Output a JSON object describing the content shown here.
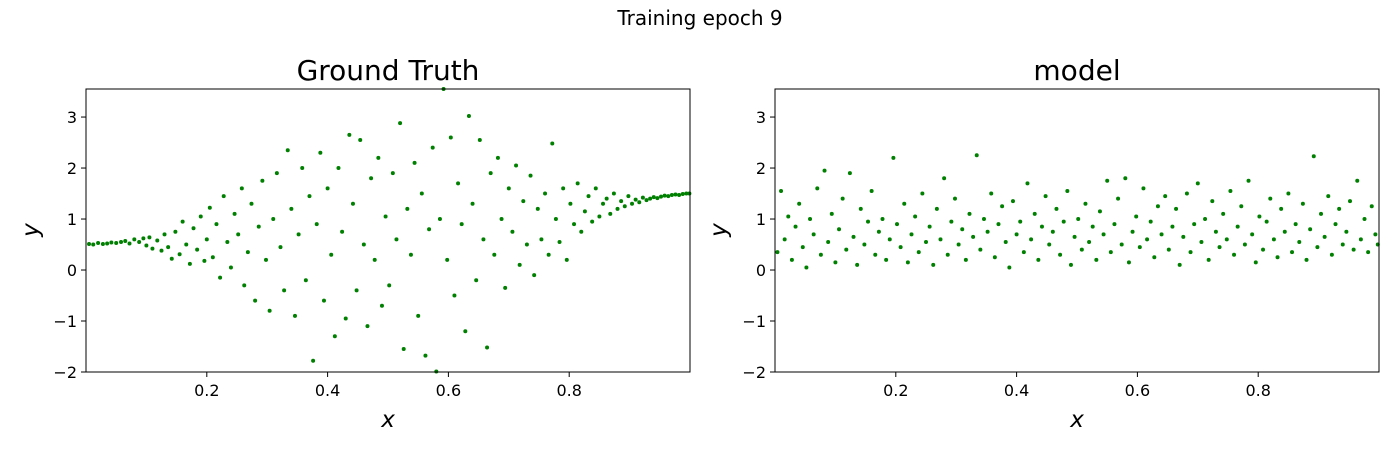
{
  "figure": {
    "suptitle": "Training epoch 9",
    "point_color": "#008000"
  },
  "chart_data": [
    {
      "type": "scatter",
      "title": "Ground Truth",
      "xlabel": "x",
      "ylabel": "y",
      "xlim": [
        0.0,
        1.0
      ],
      "ylim": [
        -2.0,
        3.55
      ],
      "xticks": [
        0.2,
        0.4,
        0.6,
        0.8
      ],
      "xtick_labels": [
        "0.2",
        "0.4",
        "0.6",
        "0.8"
      ],
      "yticks": [
        -2,
        -1,
        0,
        1,
        2,
        3
      ],
      "ytick_labels": [
        "−2",
        "−1",
        "0",
        "1",
        "2",
        "3"
      ],
      "grid": false,
      "description_of_distribution": "y centred on 0.5 + x with noise spread rising from ~0 at the edges to about ±2.5 around x=0.5",
      "points": [
        [
          0.005,
          0.51
        ],
        [
          0.012,
          0.5
        ],
        [
          0.02,
          0.53
        ],
        [
          0.028,
          0.51
        ],
        [
          0.035,
          0.52
        ],
        [
          0.042,
          0.54
        ],
        [
          0.05,
          0.53
        ],
        [
          0.058,
          0.55
        ],
        [
          0.065,
          0.57
        ],
        [
          0.072,
          0.52
        ],
        [
          0.08,
          0.6
        ],
        [
          0.088,
          0.55
        ],
        [
          0.095,
          0.62
        ],
        [
          0.1,
          0.48
        ],
        [
          0.105,
          0.64
        ],
        [
          0.11,
          0.42
        ],
        [
          0.118,
          0.58
        ],
        [
          0.125,
          0.38
        ],
        [
          0.13,
          0.7
        ],
        [
          0.136,
          0.45
        ],
        [
          0.142,
          0.22
        ],
        [
          0.148,
          0.75
        ],
        [
          0.155,
          0.31
        ],
        [
          0.16,
          0.95
        ],
        [
          0.166,
          0.5
        ],
        [
          0.172,
          0.12
        ],
        [
          0.178,
          0.82
        ],
        [
          0.184,
          0.4
        ],
        [
          0.19,
          1.05
        ],
        [
          0.196,
          0.18
        ],
        [
          0.2,
          0.6
        ],
        [
          0.205,
          1.22
        ],
        [
          0.21,
          0.25
        ],
        [
          0.216,
          0.9
        ],
        [
          0.222,
          -0.15
        ],
        [
          0.228,
          1.45
        ],
        [
          0.234,
          0.55
        ],
        [
          0.24,
          0.05
        ],
        [
          0.246,
          1.1
        ],
        [
          0.252,
          0.7
        ],
        [
          0.258,
          1.6
        ],
        [
          0.262,
          -0.3
        ],
        [
          0.268,
          0.35
        ],
        [
          0.274,
          1.3
        ],
        [
          0.28,
          -0.6
        ],
        [
          0.286,
          0.85
        ],
        [
          0.292,
          1.75
        ],
        [
          0.298,
          0.2
        ],
        [
          0.304,
          -0.8
        ],
        [
          0.31,
          1.0
        ],
        [
          0.316,
          1.9
        ],
        [
          0.322,
          0.45
        ],
        [
          0.328,
          -0.4
        ],
        [
          0.334,
          2.35
        ],
        [
          0.34,
          1.2
        ],
        [
          0.346,
          -0.9
        ],
        [
          0.352,
          0.7
        ],
        [
          0.358,
          2.0
        ],
        [
          0.364,
          -0.2
        ],
        [
          0.37,
          1.45
        ],
        [
          0.376,
          -1.78
        ],
        [
          0.382,
          0.9
        ],
        [
          0.388,
          2.3
        ],
        [
          0.394,
          -0.6
        ],
        [
          0.4,
          1.6
        ],
        [
          0.406,
          0.3
        ],
        [
          0.412,
          -1.3
        ],
        [
          0.418,
          2.0
        ],
        [
          0.424,
          0.75
        ],
        [
          0.43,
          -0.95
        ],
        [
          0.436,
          2.65
        ],
        [
          0.442,
          1.3
        ],
        [
          0.448,
          -0.4
        ],
        [
          0.454,
          2.55
        ],
        [
          0.46,
          0.5
        ],
        [
          0.466,
          -1.1
        ],
        [
          0.472,
          1.8
        ],
        [
          0.478,
          0.2
        ],
        [
          0.484,
          2.2
        ],
        [
          0.49,
          -0.7
        ],
        [
          0.496,
          1.05
        ],
        [
          0.502,
          -0.3
        ],
        [
          0.508,
          1.9
        ],
        [
          0.514,
          0.6
        ],
        [
          0.52,
          2.88
        ],
        [
          0.526,
          -1.55
        ],
        [
          0.532,
          1.2
        ],
        [
          0.538,
          0.3
        ],
        [
          0.544,
          2.1
        ],
        [
          0.55,
          -0.9
        ],
        [
          0.556,
          1.5
        ],
        [
          0.562,
          -1.68
        ],
        [
          0.568,
          0.8
        ],
        [
          0.574,
          2.4
        ],
        [
          0.58,
          -1.99
        ],
        [
          0.586,
          1.0
        ],
        [
          0.592,
          3.55
        ],
        [
          0.598,
          0.2
        ],
        [
          0.604,
          2.6
        ],
        [
          0.61,
          -0.5
        ],
        [
          0.616,
          1.7
        ],
        [
          0.622,
          0.9
        ],
        [
          0.628,
          -1.2
        ],
        [
          0.634,
          3.02
        ],
        [
          0.64,
          1.3
        ],
        [
          0.646,
          -0.2
        ],
        [
          0.652,
          2.55
        ],
        [
          0.658,
          0.6
        ],
        [
          0.664,
          -1.52
        ],
        [
          0.67,
          1.9
        ],
        [
          0.676,
          0.3
        ],
        [
          0.682,
          2.2
        ],
        [
          0.688,
          1.0
        ],
        [
          0.694,
          -0.35
        ],
        [
          0.7,
          1.6
        ],
        [
          0.706,
          0.75
        ],
        [
          0.712,
          2.05
        ],
        [
          0.718,
          0.1
        ],
        [
          0.724,
          1.35
        ],
        [
          0.73,
          0.5
        ],
        [
          0.736,
          1.85
        ],
        [
          0.742,
          -0.1
        ],
        [
          0.748,
          1.2
        ],
        [
          0.754,
          0.6
        ],
        [
          0.76,
          1.5
        ],
        [
          0.766,
          0.3
        ],
        [
          0.772,
          2.48
        ],
        [
          0.778,
          1.0
        ],
        [
          0.784,
          0.55
        ],
        [
          0.79,
          1.6
        ],
        [
          0.796,
          0.2
        ],
        [
          0.802,
          1.3
        ],
        [
          0.808,
          0.9
        ],
        [
          0.814,
          1.7
        ],
        [
          0.82,
          0.75
        ],
        [
          0.826,
          1.15
        ],
        [
          0.832,
          1.45
        ],
        [
          0.838,
          0.95
        ],
        [
          0.844,
          1.6
        ],
        [
          0.85,
          1.05
        ],
        [
          0.856,
          1.3
        ],
        [
          0.862,
          1.4
        ],
        [
          0.868,
          1.1
        ],
        [
          0.874,
          1.5
        ],
        [
          0.88,
          1.2
        ],
        [
          0.886,
          1.35
        ],
        [
          0.892,
          1.25
        ],
        [
          0.898,
          1.45
        ],
        [
          0.904,
          1.3
        ],
        [
          0.91,
          1.38
        ],
        [
          0.916,
          1.33
        ],
        [
          0.922,
          1.42
        ],
        [
          0.928,
          1.37
        ],
        [
          0.934,
          1.4
        ],
        [
          0.94,
          1.43
        ],
        [
          0.946,
          1.41
        ],
        [
          0.952,
          1.44
        ],
        [
          0.958,
          1.46
        ],
        [
          0.964,
          1.45
        ],
        [
          0.97,
          1.47
        ],
        [
          0.976,
          1.48
        ],
        [
          0.982,
          1.47
        ],
        [
          0.988,
          1.49
        ],
        [
          0.994,
          1.5
        ],
        [
          0.999,
          1.5
        ]
      ]
    },
    {
      "type": "scatter",
      "title": "model",
      "xlabel": "x",
      "ylabel": "y",
      "xlim": [
        0.0,
        1.0
      ],
      "ylim": [
        -2.0,
        3.55
      ],
      "xticks": [
        0.2,
        0.4,
        0.6,
        0.8
      ],
      "xtick_labels": [
        "0.2",
        "0.4",
        "0.6",
        "0.8"
      ],
      "yticks": [
        -2,
        -1,
        0,
        1,
        2,
        3
      ],
      "ytick_labels": [
        "−2",
        "−1",
        "0",
        "1",
        "2",
        "3"
      ],
      "grid": false,
      "description_of_distribution": "y roughly uniform band between 0 and 1.5 across all x, a few outliers near 2.2",
      "points": [
        [
          0.004,
          0.35
        ],
        [
          0.01,
          1.55
        ],
        [
          0.016,
          0.6
        ],
        [
          0.022,
          1.05
        ],
        [
          0.028,
          0.2
        ],
        [
          0.034,
          0.85
        ],
        [
          0.04,
          1.3
        ],
        [
          0.046,
          0.45
        ],
        [
          0.052,
          0.05
        ],
        [
          0.058,
          1.0
        ],
        [
          0.064,
          0.7
        ],
        [
          0.07,
          1.6
        ],
        [
          0.076,
          0.3
        ],
        [
          0.082,
          1.95
        ],
        [
          0.088,
          0.55
        ],
        [
          0.094,
          1.1
        ],
        [
          0.1,
          0.15
        ],
        [
          0.106,
          0.8
        ],
        [
          0.112,
          1.4
        ],
        [
          0.118,
          0.4
        ],
        [
          0.124,
          1.9
        ],
        [
          0.13,
          0.65
        ],
        [
          0.136,
          0.1
        ],
        [
          0.142,
          1.2
        ],
        [
          0.148,
          0.5
        ],
        [
          0.154,
          0.95
        ],
        [
          0.16,
          1.55
        ],
        [
          0.166,
          0.3
        ],
        [
          0.172,
          0.75
        ],
        [
          0.178,
          1.0
        ],
        [
          0.184,
          0.2
        ],
        [
          0.19,
          0.6
        ],
        [
          0.196,
          2.2
        ],
        [
          0.202,
          0.9
        ],
        [
          0.208,
          0.45
        ],
        [
          0.214,
          1.3
        ],
        [
          0.22,
          0.15
        ],
        [
          0.226,
          0.7
        ],
        [
          0.232,
          1.05
        ],
        [
          0.238,
          0.35
        ],
        [
          0.244,
          1.5
        ],
        [
          0.25,
          0.55
        ],
        [
          0.256,
          0.85
        ],
        [
          0.262,
          0.1
        ],
        [
          0.268,
          1.2
        ],
        [
          0.274,
          0.6
        ],
        [
          0.28,
          1.8
        ],
        [
          0.286,
          0.3
        ],
        [
          0.292,
          0.95
        ],
        [
          0.298,
          1.4
        ],
        [
          0.304,
          0.5
        ],
        [
          0.31,
          0.8
        ],
        [
          0.316,
          0.2
        ],
        [
          0.322,
          1.1
        ],
        [
          0.328,
          0.65
        ],
        [
          0.334,
          2.25
        ],
        [
          0.34,
          0.4
        ],
        [
          0.346,
          1.0
        ],
        [
          0.352,
          0.75
        ],
        [
          0.358,
          1.5
        ],
        [
          0.364,
          0.25
        ],
        [
          0.37,
          0.9
        ],
        [
          0.376,
          1.25
        ],
        [
          0.382,
          0.55
        ],
        [
          0.388,
          0.05
        ],
        [
          0.394,
          1.35
        ],
        [
          0.4,
          0.7
        ],
        [
          0.406,
          0.95
        ],
        [
          0.412,
          0.35
        ],
        [
          0.418,
          1.7
        ],
        [
          0.424,
          0.6
        ],
        [
          0.43,
          1.1
        ],
        [
          0.436,
          0.2
        ],
        [
          0.442,
          0.85
        ],
        [
          0.448,
          1.45
        ],
        [
          0.454,
          0.5
        ],
        [
          0.46,
          0.75
        ],
        [
          0.466,
          1.2
        ],
        [
          0.472,
          0.3
        ],
        [
          0.478,
          0.95
        ],
        [
          0.484,
          1.55
        ],
        [
          0.49,
          0.1
        ],
        [
          0.496,
          0.65
        ],
        [
          0.502,
          1.0
        ],
        [
          0.508,
          0.4
        ],
        [
          0.514,
          1.3
        ],
        [
          0.52,
          0.55
        ],
        [
          0.526,
          0.85
        ],
        [
          0.532,
          0.2
        ],
        [
          0.538,
          1.15
        ],
        [
          0.544,
          0.7
        ],
        [
          0.55,
          1.75
        ],
        [
          0.556,
          0.35
        ],
        [
          0.562,
          0.9
        ],
        [
          0.568,
          1.4
        ],
        [
          0.574,
          0.5
        ],
        [
          0.58,
          1.8
        ],
        [
          0.586,
          0.15
        ],
        [
          0.592,
          0.75
        ],
        [
          0.598,
          1.05
        ],
        [
          0.604,
          0.45
        ],
        [
          0.61,
          1.6
        ],
        [
          0.616,
          0.6
        ],
        [
          0.622,
          0.95
        ],
        [
          0.628,
          0.25
        ],
        [
          0.634,
          1.25
        ],
        [
          0.64,
          0.7
        ],
        [
          0.646,
          1.45
        ],
        [
          0.652,
          0.4
        ],
        [
          0.658,
          0.85
        ],
        [
          0.664,
          1.2
        ],
        [
          0.67,
          0.1
        ],
        [
          0.676,
          0.65
        ],
        [
          0.682,
          1.5
        ],
        [
          0.688,
          0.35
        ],
        [
          0.694,
          0.9
        ],
        [
          0.7,
          1.7
        ],
        [
          0.706,
          0.55
        ],
        [
          0.712,
          1.0
        ],
        [
          0.718,
          0.2
        ],
        [
          0.724,
          1.35
        ],
        [
          0.73,
          0.75
        ],
        [
          0.736,
          0.45
        ],
        [
          0.742,
          1.1
        ],
        [
          0.748,
          0.6
        ],
        [
          0.754,
          1.55
        ],
        [
          0.76,
          0.3
        ],
        [
          0.766,
          0.85
        ],
        [
          0.772,
          1.25
        ],
        [
          0.778,
          0.5
        ],
        [
          0.784,
          1.75
        ],
        [
          0.79,
          0.7
        ],
        [
          0.796,
          0.15
        ],
        [
          0.802,
          1.05
        ],
        [
          0.808,
          0.4
        ],
        [
          0.814,
          0.95
        ],
        [
          0.82,
          1.4
        ],
        [
          0.826,
          0.6
        ],
        [
          0.832,
          0.25
        ],
        [
          0.838,
          1.2
        ],
        [
          0.844,
          0.75
        ],
        [
          0.85,
          1.5
        ],
        [
          0.856,
          0.35
        ],
        [
          0.862,
          0.9
        ],
        [
          0.868,
          0.55
        ],
        [
          0.874,
          1.3
        ],
        [
          0.88,
          0.2
        ],
        [
          0.886,
          0.8
        ],
        [
          0.892,
          2.23
        ],
        [
          0.898,
          0.45
        ],
        [
          0.904,
          1.1
        ],
        [
          0.91,
          0.65
        ],
        [
          0.916,
          1.45
        ],
        [
          0.922,
          0.3
        ],
        [
          0.928,
          0.9
        ],
        [
          0.934,
          1.2
        ],
        [
          0.94,
          0.5
        ],
        [
          0.946,
          0.75
        ],
        [
          0.952,
          1.35
        ],
        [
          0.958,
          0.4
        ],
        [
          0.964,
          1.75
        ],
        [
          0.97,
          0.6
        ],
        [
          0.976,
          1.0
        ],
        [
          0.982,
          0.35
        ],
        [
          0.988,
          1.25
        ],
        [
          0.994,
          0.7
        ],
        [
          0.998,
          0.5
        ]
      ]
    }
  ]
}
